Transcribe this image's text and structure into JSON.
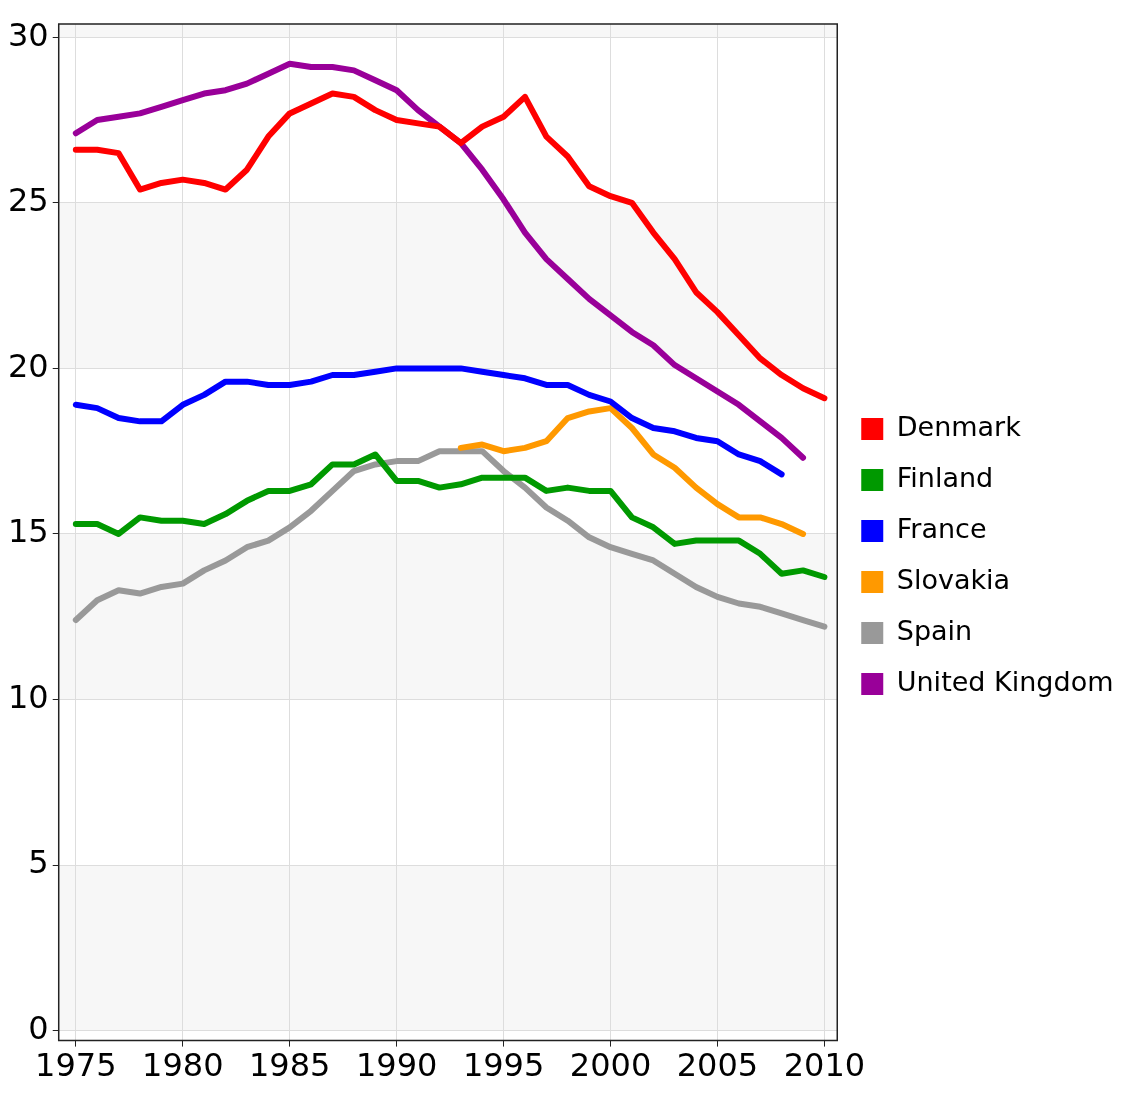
{
  "chart_data": {
    "type": "line",
    "x": [
      1975,
      1976,
      1977,
      1978,
      1979,
      1980,
      1981,
      1982,
      1983,
      1984,
      1985,
      1986,
      1987,
      1988,
      1989,
      1990,
      1991,
      1992,
      1993,
      1994,
      1995,
      1996,
      1997,
      1998,
      1999,
      2000,
      2001,
      2002,
      2003,
      2004,
      2005,
      2006,
      2007,
      2008,
      2009,
      2010
    ],
    "series": [
      {
        "name": "Denmark",
        "color": "#ff0000",
        "values": [
          26.6,
          26.6,
          26.5,
          25.4,
          25.6,
          25.7,
          25.6,
          25.4,
          26.0,
          27.0,
          27.7,
          28.0,
          28.3,
          28.2,
          27.8,
          27.5,
          27.4,
          27.3,
          26.8,
          27.3,
          27.6,
          28.2,
          27.0,
          26.4,
          25.5,
          25.2,
          25.0,
          24.1,
          23.3,
          22.3,
          21.7,
          21.0,
          20.3,
          19.8,
          19.4,
          19.1
        ]
      },
      {
        "name": "Finland",
        "color": "#009900",
        "values": [
          15.3,
          15.3,
          15.0,
          15.5,
          15.4,
          15.4,
          15.3,
          15.6,
          16.0,
          16.3,
          16.3,
          16.5,
          17.1,
          17.1,
          17.4,
          16.6,
          16.6,
          16.4,
          16.5,
          16.7,
          16.7,
          16.7,
          16.3,
          16.4,
          16.3,
          16.3,
          15.5,
          15.2,
          14.7,
          14.8,
          14.8,
          14.8,
          14.4,
          13.8,
          13.9,
          13.7
        ]
      },
      {
        "name": "France",
        "color": "#0000ff",
        "values": [
          18.9,
          18.8,
          18.5,
          18.4,
          18.4,
          18.9,
          19.2,
          19.6,
          19.6,
          19.5,
          19.5,
          19.6,
          19.8,
          19.8,
          19.9,
          20.0,
          20.0,
          20.0,
          20.0,
          19.9,
          19.8,
          19.7,
          19.5,
          19.5,
          19.2,
          19.0,
          18.5,
          18.2,
          18.1,
          17.9,
          17.8,
          17.4,
          17.2,
          16.8,
          null,
          null
        ]
      },
      {
        "name": "Slovakia",
        "color": "#ff9900",
        "values": [
          null,
          null,
          null,
          null,
          null,
          null,
          null,
          null,
          null,
          null,
          null,
          null,
          null,
          null,
          null,
          null,
          null,
          null,
          17.6,
          17.7,
          17.5,
          17.6,
          17.8,
          18.5,
          18.7,
          18.8,
          18.2,
          17.4,
          17.0,
          16.4,
          15.9,
          15.5,
          15.5,
          15.3,
          15.0,
          null
        ]
      },
      {
        "name": "Spain",
        "color": "#999999",
        "values": [
          12.4,
          13.0,
          13.3,
          13.2,
          13.4,
          13.5,
          13.9,
          14.2,
          14.6,
          14.8,
          15.2,
          15.7,
          16.3,
          16.9,
          17.1,
          17.2,
          17.2,
          17.5,
          17.5,
          17.5,
          16.9,
          16.4,
          15.8,
          15.4,
          14.9,
          14.6,
          14.4,
          14.2,
          13.8,
          13.4,
          13.1,
          12.9,
          12.8,
          12.6,
          12.4,
          12.2
        ]
      },
      {
        "name": "United Kingdom",
        "color": "#990099",
        "values": [
          27.1,
          27.5,
          27.6,
          27.7,
          27.9,
          28.1,
          28.3,
          28.4,
          28.6,
          28.9,
          29.2,
          29.1,
          29.1,
          29.0,
          28.7,
          28.4,
          27.8,
          27.3,
          26.8,
          26.0,
          25.1,
          24.1,
          23.3,
          22.7,
          22.1,
          21.6,
          21.1,
          20.7,
          20.1,
          19.7,
          19.3,
          18.9,
          18.4,
          17.9,
          17.3,
          null
        ]
      }
    ],
    "xlim": [
      1974.2,
      2010.6
    ],
    "xticks": [
      1975,
      1980,
      1985,
      1990,
      1995,
      2000,
      2005,
      2010
    ],
    "ylim": [
      -0.3,
      30.4
    ],
    "yticks": [
      0,
      5,
      10,
      15,
      20,
      25,
      30
    ],
    "grid": true,
    "legend": "right",
    "marker": "none",
    "line_style": "solid"
  }
}
